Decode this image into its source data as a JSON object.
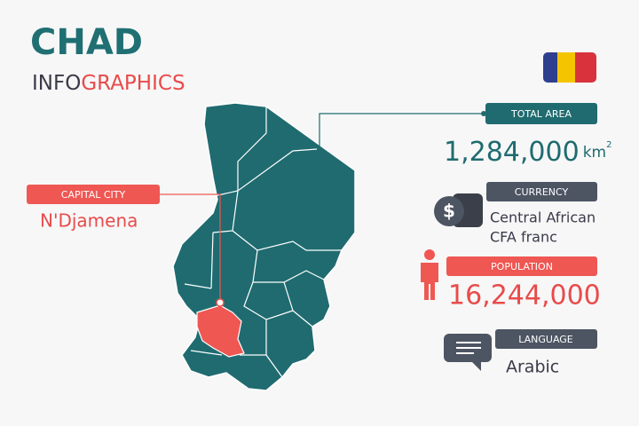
{
  "header": {
    "title": "CHAD",
    "subtitle_part1": "INFO",
    "subtitle_part2": "GRAPHICS"
  },
  "total_area": {
    "label": "TOTAL AREA",
    "value": "1,284,000",
    "unit": "km",
    "unit_exponent": "2"
  },
  "capital_city": {
    "label": "CAPITAL CITY",
    "value": "N'Djamena"
  },
  "currency": {
    "label": "CURRENCY",
    "lines": [
      "Central African",
      "CFA franc"
    ]
  },
  "population": {
    "label": "POPULATION",
    "value": "16,244,000"
  },
  "language": {
    "label": "LANGUAGE",
    "value": "Arabic"
  }
}
